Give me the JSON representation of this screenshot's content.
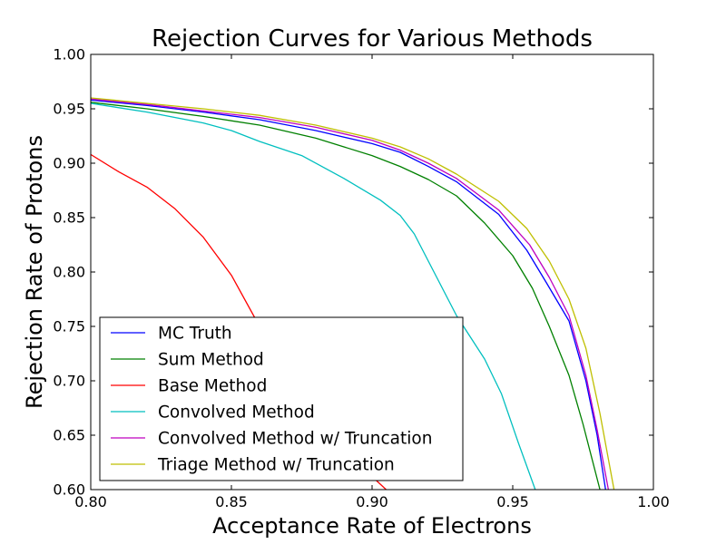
{
  "chart_data": {
    "type": "line",
    "title": "Rejection Curves for Various Methods",
    "xlabel": "Acceptance Rate of Electrons",
    "ylabel": "Rejection Rate of Protons",
    "xlim": [
      0.8,
      1.0
    ],
    "ylim": [
      0.6,
      1.0
    ],
    "xticks": [
      "0.80",
      "0.85",
      "0.90",
      "0.95",
      "1.00"
    ],
    "yticks": [
      "0.60",
      "0.65",
      "0.70",
      "0.75",
      "0.80",
      "0.85",
      "0.90",
      "0.95",
      "1.00"
    ],
    "grid": false,
    "legend_placement": "lower-left",
    "series": [
      {
        "name": "MC Truth",
        "color": "#0000ff",
        "x": [
          0.8,
          0.82,
          0.84,
          0.86,
          0.88,
          0.9,
          0.91,
          0.92,
          0.93,
          0.945,
          0.955,
          0.962,
          0.97,
          0.976,
          0.98,
          0.983
        ],
        "y": [
          0.958,
          0.953,
          0.947,
          0.94,
          0.93,
          0.918,
          0.91,
          0.897,
          0.883,
          0.853,
          0.82,
          0.79,
          0.755,
          0.7,
          0.65,
          0.6
        ]
      },
      {
        "name": "Sum Method",
        "color": "#008000",
        "x": [
          0.8,
          0.82,
          0.84,
          0.86,
          0.88,
          0.9,
          0.91,
          0.92,
          0.93,
          0.94,
          0.95,
          0.957,
          0.963,
          0.97,
          0.975,
          0.981
        ],
        "y": [
          0.956,
          0.95,
          0.943,
          0.935,
          0.923,
          0.907,
          0.897,
          0.885,
          0.87,
          0.845,
          0.815,
          0.785,
          0.75,
          0.705,
          0.66,
          0.6
        ]
      },
      {
        "name": "Base Method",
        "color": "#ff0000",
        "x": [
          0.8,
          0.81,
          0.82,
          0.83,
          0.84,
          0.85,
          0.86,
          0.87,
          0.88,
          0.89,
          0.9,
          0.905
        ],
        "y": [
          0.908,
          0.892,
          0.878,
          0.858,
          0.832,
          0.797,
          0.75,
          0.712,
          0.68,
          0.64,
          0.612,
          0.6
        ]
      },
      {
        "name": "Convolved Method",
        "color": "#00bfbf",
        "x": [
          0.8,
          0.82,
          0.84,
          0.85,
          0.86,
          0.875,
          0.89,
          0.903,
          0.91,
          0.915,
          0.922,
          0.93,
          0.94,
          0.946,
          0.952,
          0.958
        ],
        "y": [
          0.955,
          0.947,
          0.937,
          0.93,
          0.92,
          0.907,
          0.886,
          0.866,
          0.852,
          0.835,
          0.8,
          0.76,
          0.72,
          0.688,
          0.643,
          0.6
        ]
      },
      {
        "name": "Convolved Method w/ Truncation",
        "color": "#bf00bf",
        "x": [
          0.8,
          0.82,
          0.84,
          0.86,
          0.88,
          0.9,
          0.91,
          0.92,
          0.93,
          0.945,
          0.956,
          0.963,
          0.97,
          0.976,
          0.98,
          0.984
        ],
        "y": [
          0.959,
          0.954,
          0.948,
          0.942,
          0.933,
          0.921,
          0.912,
          0.9,
          0.886,
          0.857,
          0.825,
          0.795,
          0.76,
          0.705,
          0.655,
          0.6
        ]
      },
      {
        "name": "Triage Method w/ Truncation",
        "color": "#bfbf00",
        "x": [
          0.8,
          0.82,
          0.84,
          0.86,
          0.88,
          0.9,
          0.91,
          0.92,
          0.93,
          0.945,
          0.955,
          0.963,
          0.97,
          0.976,
          0.981,
          0.986
        ],
        "y": [
          0.96,
          0.955,
          0.95,
          0.944,
          0.935,
          0.923,
          0.915,
          0.904,
          0.89,
          0.865,
          0.84,
          0.81,
          0.775,
          0.73,
          0.67,
          0.6
        ]
      }
    ]
  }
}
